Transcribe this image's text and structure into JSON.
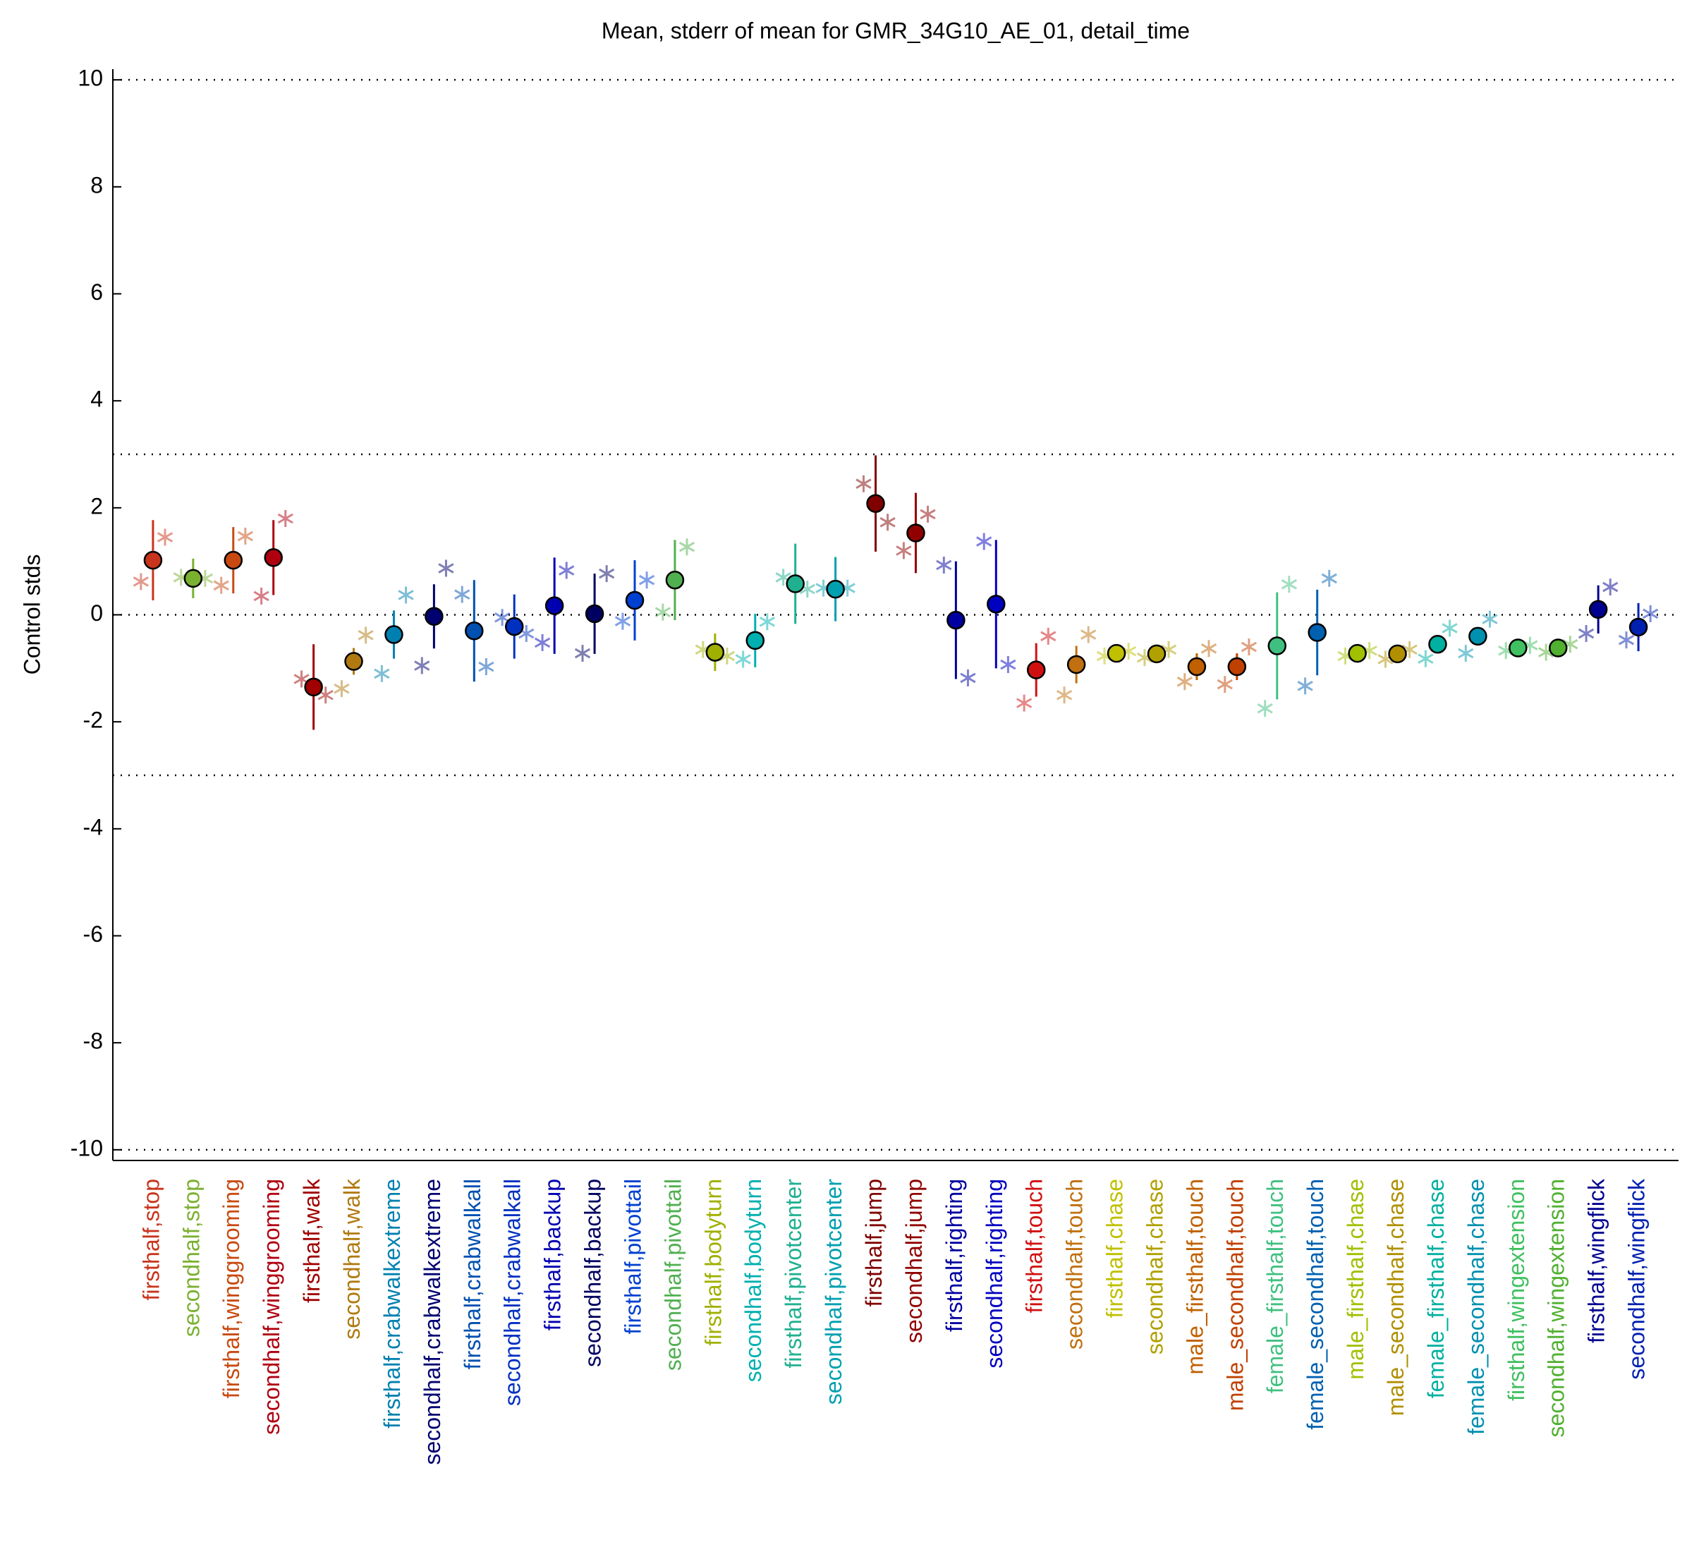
{
  "chart_data": {
    "type": "errorbar",
    "title": "Mean, stderr of mean for GMR_34G10_AE_01, detail_time",
    "y_label": "Control stds",
    "categories": [
      "firsthalf,stop",
      "secondhalf,stop",
      "firsthalf,winggrooming",
      "secondhalf,winggrooming",
      "firsthalf,walk",
      "secondhalf,walk",
      "firsthalf,crabwalkextreme",
      "secondhalf,crabwalkextreme",
      "firsthalf,crabwalkall",
      "secondhalf,crabwalkall",
      "firsthalf,backup",
      "secondhalf,backup",
      "firsthalf,pivottail",
      "secondhalf,pivottail",
      "firsthalf,bodyturn",
      "secondhalf,bodyturn",
      "firsthalf,pivotcenter",
      "secondhalf,pivotcenter",
      "firsthalf,jump",
      "secondhalf,jump",
      "firsthalf,righting",
      "secondhalf,righting",
      "firsthalf,touch",
      "secondhalf,touch",
      "firsthalf,chase",
      "secondhalf,chase",
      "male_firsthalf,touch",
      "male_secondhalf,touch",
      "female_firsthalf,touch",
      "female_secondhalf,touch",
      "male_firsthalf,chase",
      "male_secondhalf,chase",
      "female_firsthalf,chase",
      "female_secondhalf,chase",
      "firsthalf,wingextension",
      "secondhalf,wingextension",
      "firsthalf,wingflick",
      "secondhalf,wingflick"
    ],
    "colors": [
      "#c8341c",
      "#7ab030",
      "#c84a10",
      "#b00010",
      "#a00000",
      "#b07a10",
      "#0080b0",
      "#000070",
      "#0050b0",
      "#0030c0",
      "#0000b0",
      "#000060",
      "#0040d0",
      "#50b050",
      "#a0b000",
      "#00b0b0",
      "#20b090",
      "#00a0b0",
      "#800000",
      "#900000",
      "#0000a0",
      "#0000c0",
      "#d01010",
      "#c07010",
      "#c0c000",
      "#b0a000",
      "#c06000",
      "#c04000",
      "#40c080",
      "#0060b0",
      "#a0c000",
      "#b09000",
      "#00b0a0",
      "#0090b0",
      "#40c060",
      "#50b030",
      "#000090",
      "#0020b0"
    ],
    "values": [
      1.02,
      0.68,
      1.02,
      1.07,
      -1.35,
      -0.87,
      -0.37,
      -0.03,
      -0.3,
      -0.22,
      0.17,
      0.02,
      0.27,
      0.65,
      -0.7,
      -0.48,
      0.58,
      0.48,
      2.08,
      1.53,
      -0.1,
      0.2,
      -1.03,
      -0.93,
      -0.72,
      -0.73,
      -0.97,
      -0.97,
      -0.58,
      -0.33,
      -0.72,
      -0.73,
      -0.55,
      -0.4,
      -0.62,
      -0.62,
      0.1,
      -0.23
    ],
    "errors": [
      0.75,
      0.37,
      0.62,
      0.7,
      0.8,
      0.25,
      0.45,
      0.6,
      0.95,
      0.6,
      0.9,
      0.75,
      0.75,
      0.75,
      0.35,
      0.5,
      0.75,
      0.6,
      0.9,
      0.75,
      1.1,
      1.2,
      0.5,
      0.35,
      0.1,
      0.1,
      0.25,
      0.25,
      1.0,
      0.8,
      0.08,
      0.08,
      0.08,
      0.08,
      0.06,
      0.06,
      0.45,
      0.45
    ],
    "side_points": [
      {
        "values": [
          0.62,
          0.7,
          0.55,
          0.35,
          -1.2,
          -1.38,
          -1.1,
          -0.95,
          0.38,
          -0.05,
          -0.52,
          -0.72,
          -0.12,
          0.05,
          -0.65,
          -0.83,
          0.7,
          0.5,
          2.45,
          1.2,
          0.93,
          1.37,
          -1.65,
          -1.5,
          -0.77,
          -0.8,
          -1.25,
          -1.3,
          -1.75,
          -1.33,
          -0.77,
          -0.83,
          -0.82,
          -0.72,
          -0.67,
          -0.7,
          -0.35,
          -0.47
        ]
      },
      {
        "values": [
          1.45,
          0.68,
          1.47,
          1.8,
          -1.5,
          -0.38,
          0.37,
          0.87,
          -0.97,
          -0.35,
          0.83,
          0.77,
          0.65,
          1.27,
          -0.77,
          -0.13,
          0.48,
          0.5,
          1.73,
          1.88,
          -1.18,
          -0.93,
          -0.4,
          -0.37,
          -0.68,
          -0.65,
          -0.63,
          -0.6,
          0.57,
          0.68,
          -0.67,
          -0.65,
          -0.25,
          -0.08,
          -0.57,
          -0.55,
          0.52,
          0.02
        ]
      }
    ],
    "ylim": [
      -10.2,
      10.2
    ],
    "yticks": [
      -10,
      -8,
      -6,
      -4,
      -2,
      0,
      2,
      4,
      6,
      8,
      10
    ],
    "reference_lines": [
      10,
      3,
      0,
      -3,
      -10
    ],
    "grid": false
  }
}
